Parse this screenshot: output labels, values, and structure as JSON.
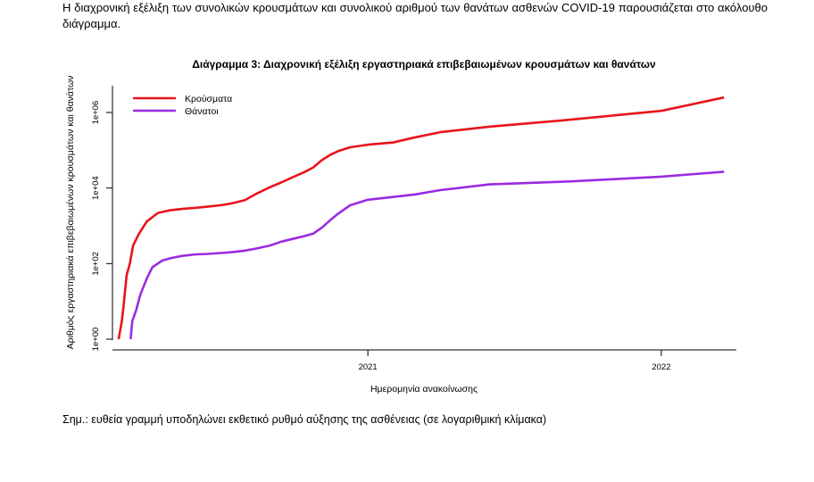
{
  "intro_text": "Η διαχρονική εξέλιξη των συνολικών κρουσμάτων και συνολικού αριθμού των θανάτων ασθενών COVID-19 παρουσιάζεται στο ακόλουθο διάγραμμα.",
  "note_text": "Σημ.: ευθεία γραμμή υποδηλώνει εκθετικό ρυθμό αύξησης της ασθένειας (σε λογαριθμική κλίμακα)",
  "colors": {
    "cases": "#e8141c",
    "deaths": "#9a2be2"
  },
  "chart_data": {
    "type": "line",
    "title": "Διάγραμμα 3: Διαχρονική εξέλιξη εργαστηριακά επιβεβαιωμένων κρουσμάτων και θανάτων",
    "xlabel": "Ημερομηνία ανακοίνωσης",
    "ylabel": "Αριθμός εργαστηριακά επιβεβαιωμένων κρουσμάτων και θανάτων",
    "y_scale": "log10",
    "ylim": [
      1,
      3000000
    ],
    "xlim": [
      "2020-02-15",
      "2022-04-01"
    ],
    "x_ticks": [
      {
        "date": "2021-01-01",
        "label": "2021"
      },
      {
        "date": "2022-01-01",
        "label": "2022"
      }
    ],
    "y_ticks": [
      {
        "value": 1,
        "label": "1e+00"
      },
      {
        "value": 100,
        "label": "1e+02"
      },
      {
        "value": 10000,
        "label": "1e+04"
      },
      {
        "value": 1000000,
        "label": "1e+06"
      }
    ],
    "legend_position": "top-left",
    "grid": false,
    "series": [
      {
        "name": "Κρούσματα",
        "color_key": "cases",
        "points": [
          [
            "2020-02-26",
            1
          ],
          [
            "2020-03-01",
            3
          ],
          [
            "2020-03-03",
            7
          ],
          [
            "2020-03-07",
            50
          ],
          [
            "2020-03-11",
            100
          ],
          [
            "2020-03-15",
            300
          ],
          [
            "2020-03-22",
            600
          ],
          [
            "2020-04-01",
            1300
          ],
          [
            "2020-04-15",
            2200
          ],
          [
            "2020-05-01",
            2600
          ],
          [
            "2020-05-15",
            2800
          ],
          [
            "2020-06-01",
            3000
          ],
          [
            "2020-06-15",
            3200
          ],
          [
            "2020-07-01",
            3500
          ],
          [
            "2020-07-15",
            3900
          ],
          [
            "2020-08-01",
            4800
          ],
          [
            "2020-08-15",
            7000
          ],
          [
            "2020-09-01",
            10500
          ],
          [
            "2020-09-15",
            14000
          ],
          [
            "2020-10-01",
            20000
          ],
          [
            "2020-10-15",
            27000
          ],
          [
            "2020-10-25",
            35000
          ],
          [
            "2020-11-05",
            55000
          ],
          [
            "2020-11-15",
            75000
          ],
          [
            "2020-11-25",
            95000
          ],
          [
            "2020-12-10",
            120000
          ],
          [
            "2021-01-01",
            140000
          ],
          [
            "2021-02-01",
            160000
          ],
          [
            "2021-03-01",
            220000
          ],
          [
            "2021-04-01",
            300000
          ],
          [
            "2021-06-01",
            420000
          ],
          [
            "2021-09-01",
            620000
          ],
          [
            "2022-01-01",
            1100000
          ],
          [
            "2022-03-20",
            2500000
          ]
        ]
      },
      {
        "name": "Θάνατοι",
        "color_key": "deaths",
        "points": [
          [
            "2020-03-12",
            1
          ],
          [
            "2020-03-14",
            3
          ],
          [
            "2020-03-19",
            6
          ],
          [
            "2020-03-24",
            15
          ],
          [
            "2020-04-01",
            40
          ],
          [
            "2020-04-08",
            80
          ],
          [
            "2020-04-20",
            120
          ],
          [
            "2020-05-01",
            140
          ],
          [
            "2020-05-15",
            160
          ],
          [
            "2020-06-01",
            175
          ],
          [
            "2020-06-15",
            180
          ],
          [
            "2020-07-01",
            190
          ],
          [
            "2020-07-15",
            200
          ],
          [
            "2020-08-01",
            220
          ],
          [
            "2020-08-15",
            250
          ],
          [
            "2020-09-01",
            300
          ],
          [
            "2020-09-15",
            380
          ],
          [
            "2020-10-01",
            460
          ],
          [
            "2020-10-15",
            540
          ],
          [
            "2020-10-25",
            620
          ],
          [
            "2020-11-05",
            900
          ],
          [
            "2020-11-15",
            1400
          ],
          [
            "2020-11-25",
            2100
          ],
          [
            "2020-12-10",
            3500
          ],
          [
            "2021-01-01",
            4900
          ],
          [
            "2021-02-01",
            5800
          ],
          [
            "2021-03-01",
            6800
          ],
          [
            "2021-04-01",
            8800
          ],
          [
            "2021-06-01",
            12500
          ],
          [
            "2021-09-01",
            14700
          ],
          [
            "2022-01-01",
            20000
          ],
          [
            "2022-03-20",
            27000
          ]
        ]
      }
    ]
  }
}
